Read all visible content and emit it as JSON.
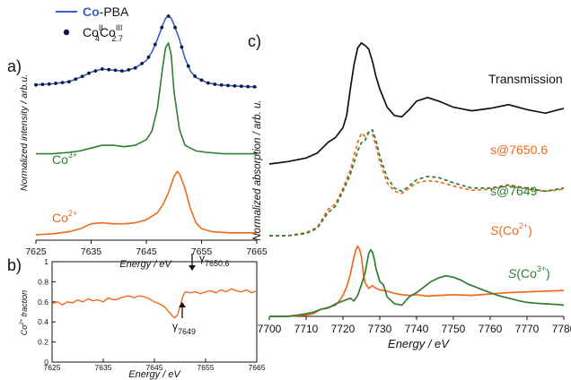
{
  "panels": {
    "a": "a)",
    "b": "b)",
    "c": "c)"
  },
  "colors": {
    "blue": "#3b5fc6",
    "green": "#2e7d32",
    "orange": "#ef6a1c",
    "black": "#111111",
    "dots": "#0d1b3d"
  },
  "chart_data": [
    {
      "id": "a",
      "type": "line",
      "xlabel": "Energy / eV",
      "ylabel": "Normalized intensity / arb.u.",
      "xlim": [
        7625,
        7665
      ],
      "xticks": [
        "7625",
        "7635",
        "7645",
        "7655",
        "7665"
      ],
      "legend": {
        "placement": "top-left",
        "entries": [
          {
            "bold": "Co",
            "text": "-PBA",
            "style": "line",
            "color": "#3b5fc6"
          },
          {
            "text": "Co",
            "sup1": "II",
            "sub1": "4",
            "mid": "Co",
            "sup2": "III",
            "sub2": "2.7",
            "style": "dot",
            "color": "#0d1b3d"
          }
        ]
      },
      "series_labels": [
        {
          "base": "Co",
          "sup": "3+",
          "color": "#2e7d32"
        },
        {
          "base": "Co",
          "sup": "2+",
          "color": "#ef6a1c"
        }
      ],
      "series": [
        {
          "name": "Co-PBA",
          "color": "#3b5fc6",
          "x": [
            7625,
            7628,
            7631,
            7633,
            7635,
            7637,
            7639,
            7641,
            7643,
            7645,
            7646,
            7647,
            7648,
            7648.5,
            7649,
            7649.5,
            7650,
            7651,
            7652,
            7653,
            7654,
            7656,
            7658,
            7661,
            7665
          ],
          "y": [
            0.35,
            0.36,
            0.38,
            0.42,
            0.47,
            0.5,
            0.49,
            0.48,
            0.51,
            0.58,
            0.66,
            0.78,
            0.92,
            0.98,
            1.0,
            0.98,
            0.92,
            0.78,
            0.6,
            0.48,
            0.42,
            0.37,
            0.35,
            0.34,
            0.33
          ]
        },
        {
          "name": "Co3+",
          "color": "#2e7d32",
          "x": [
            7625,
            7628,
            7631,
            7633,
            7635,
            7637,
            7639,
            7641,
            7643,
            7645,
            7646,
            7647,
            7648,
            7648.5,
            7649,
            7649.5,
            7650,
            7651,
            7652,
            7654,
            7656,
            7659,
            7665
          ],
          "y": [
            0.18,
            0.18,
            0.19,
            0.2,
            0.22,
            0.24,
            0.24,
            0.23,
            0.24,
            0.28,
            0.34,
            0.5,
            0.8,
            0.93,
            0.96,
            0.88,
            0.62,
            0.35,
            0.24,
            0.2,
            0.19,
            0.18,
            0.18
          ]
        },
        {
          "name": "Co2+",
          "color": "#ef6a1c",
          "x": [
            7625,
            7628,
            7631,
            7633,
            7635,
            7637,
            7639,
            7641,
            7643,
            7645,
            7647,
            7648,
            7649,
            7650,
            7650.6,
            7651,
            7652,
            7653,
            7654,
            7655,
            7657,
            7660,
            7665
          ],
          "y": [
            0.0,
            0.01,
            0.03,
            0.06,
            0.11,
            0.12,
            0.11,
            0.11,
            0.12,
            0.15,
            0.22,
            0.3,
            0.42,
            0.58,
            0.63,
            0.61,
            0.46,
            0.26,
            0.12,
            0.06,
            0.03,
            0.02,
            0.02
          ]
        }
      ],
      "markers": {
        "name": "CoII4CoIII2.7",
        "x": [
          7625,
          7626.2,
          7627.4,
          7628.6,
          7629.8,
          7631,
          7632.2,
          7633.4,
          7634.6,
          7635.8,
          7637,
          7638.2,
          7639.4,
          7640.6,
          7641.8,
          7643,
          7644.2,
          7645.4,
          7646.6,
          7647.8,
          7649,
          7650.2,
          7651.4,
          7652.6,
          7653.8,
          7655,
          7656.2,
          7657.4,
          7658.6,
          7659.8,
          7661,
          7662.2,
          7663.4,
          7664.6
        ]
      }
    },
    {
      "id": "b",
      "type": "line",
      "xlabel": "Energy / eV",
      "ylabel": "Co2+ fraction",
      "xlim": [
        7625,
        7665
      ],
      "ylim": [
        0,
        1
      ],
      "xticks": [
        "7625",
        "7635",
        "7645",
        "7655",
        "7665"
      ],
      "yticks": [
        "0",
        "0.2",
        "0.4",
        "0.6",
        "0.8",
        "1"
      ],
      "annotations": [
        {
          "greek": "γ",
          "sub": "7650.6",
          "x": 7650.6
        },
        {
          "greek": "γ",
          "sub": "7649",
          "x": 7649
        }
      ],
      "series": [
        {
          "name": "Co2+ fraction",
          "color": "#ef6a1c",
          "x": [
            7625,
            7626,
            7627,
            7628,
            7629,
            7630,
            7631,
            7632,
            7633,
            7634,
            7635,
            7636,
            7637,
            7638,
            7639,
            7640,
            7641,
            7642,
            7643,
            7644,
            7645,
            7646,
            7647,
            7647.5,
            7648,
            7648.5,
            7649,
            7649.5,
            7650,
            7650.6,
            7651,
            7652,
            7653,
            7654,
            7655,
            7656,
            7657,
            7658,
            7659,
            7660,
            7661,
            7662,
            7663,
            7664,
            7665
          ],
          "y": [
            0.58,
            0.6,
            0.57,
            0.6,
            0.59,
            0.62,
            0.6,
            0.63,
            0.61,
            0.62,
            0.6,
            0.64,
            0.62,
            0.63,
            0.65,
            0.66,
            0.64,
            0.66,
            0.65,
            0.63,
            0.6,
            0.58,
            0.55,
            0.52,
            0.49,
            0.46,
            0.44,
            0.47,
            0.55,
            0.66,
            0.7,
            0.69,
            0.7,
            0.68,
            0.7,
            0.71,
            0.69,
            0.72,
            0.7,
            0.73,
            0.71,
            0.7,
            0.72,
            0.69,
            0.71
          ]
        }
      ]
    },
    {
      "id": "c",
      "type": "line",
      "xlabel": "Energy / eV",
      "ylabel": "Normalized absorption / arb. u.",
      "xlim": [
        7700,
        7780
      ],
      "xticks": [
        "7700",
        "7710",
        "7720",
        "7730",
        "7740",
        "7750",
        "7760",
        "7770",
        "7780"
      ],
      "curve_labels": [
        {
          "text": "Transmission",
          "color": "#111111"
        },
        {
          "text": "s@7650.6",
          "color": "#ef6a1c"
        },
        {
          "text": "s@7649",
          "color": "#2e7d32"
        },
        {
          "italic": "S",
          "rest": "(Co",
          "sup": "2+",
          "close": ")",
          "color": "#ef6a1c"
        },
        {
          "italic": "S",
          "rest": "(Co",
          "sup": "3+",
          "close": ")",
          "color": "#2e7d32"
        }
      ],
      "series": [
        {
          "name": "Transmission",
          "color": "#111111",
          "dashed": false,
          "x": [
            7700,
            7705,
            7710,
            7713,
            7716,
            7718,
            7720,
            7721,
            7722,
            7723,
            7724,
            7725,
            7726,
            7727,
            7728,
            7729,
            7730,
            7732,
            7734,
            7736,
            7738,
            7740,
            7743,
            7746,
            7750,
            7755,
            7760,
            7765,
            7770,
            7775,
            7780
          ],
          "y": [
            0.0,
            0.02,
            0.05,
            0.09,
            0.18,
            0.22,
            0.3,
            0.4,
            0.62,
            0.82,
            0.96,
            1.0,
            0.98,
            0.95,
            0.85,
            0.72,
            0.62,
            0.47,
            0.4,
            0.39,
            0.45,
            0.52,
            0.55,
            0.52,
            0.47,
            0.44,
            0.46,
            0.49,
            0.45,
            0.42,
            0.46
          ]
        },
        {
          "name": "s@7650.6",
          "color": "#ef6a1c",
          "dashed": true,
          "x": [
            7700,
            7705,
            7710,
            7713,
            7716,
            7718,
            7720,
            7722,
            7724,
            7725,
            7726,
            7727,
            7728,
            7729,
            7730,
            7732,
            7734,
            7736,
            7738,
            7740,
            7743,
            7746,
            7750,
            7755,
            7760,
            7765,
            7770,
            7775,
            7780
          ],
          "y": [
            0.0,
            0.0,
            0.03,
            0.08,
            0.25,
            0.3,
            0.45,
            0.62,
            0.88,
            0.97,
            0.94,
            0.98,
            0.96,
            0.85,
            0.7,
            0.5,
            0.42,
            0.4,
            0.45,
            0.5,
            0.52,
            0.51,
            0.47,
            0.43,
            0.44,
            0.47,
            0.44,
            0.42,
            0.44
          ]
        },
        {
          "name": "s@7649",
          "color": "#2e7d32",
          "dashed": true,
          "x": [
            7700,
            7705,
            7710,
            7713,
            7716,
            7718,
            7720,
            7722,
            7724,
            7725,
            7726,
            7727,
            7728,
            7729,
            7730,
            7732,
            7734,
            7736,
            7738,
            7740,
            7743,
            7746,
            7750,
            7755,
            7760,
            7765,
            7770,
            7775,
            7780
          ],
          "y": [
            0.0,
            0.0,
            0.02,
            0.07,
            0.22,
            0.28,
            0.42,
            0.58,
            0.8,
            0.88,
            0.9,
            0.98,
            1.0,
            0.9,
            0.75,
            0.55,
            0.45,
            0.42,
            0.47,
            0.53,
            0.56,
            0.55,
            0.5,
            0.45,
            0.45,
            0.48,
            0.45,
            0.42,
            0.45
          ]
        },
        {
          "name": "S(Co2+)",
          "color": "#ef6a1c",
          "dashed": false,
          "x": [
            7700,
            7705,
            7708,
            7710,
            7712,
            7714,
            7716,
            7718,
            7719,
            7720,
            7721,
            7722,
            7723,
            7723.5,
            7724,
            7724.5,
            7725,
            7725.5,
            7726,
            7727,
            7728,
            7729,
            7730,
            7732,
            7734,
            7736,
            7738,
            7740,
            7743,
            7746,
            7750,
            7755,
            7760,
            7765,
            7770,
            7775,
            7780
          ],
          "y": [
            0.0,
            0.0,
            0.01,
            0.02,
            0.04,
            0.1,
            0.13,
            0.16,
            0.22,
            0.3,
            0.42,
            0.6,
            0.85,
            0.95,
            1.0,
            0.96,
            0.86,
            0.62,
            0.48,
            0.4,
            0.44,
            0.4,
            0.38,
            0.36,
            0.33,
            0.31,
            0.3,
            0.31,
            0.29,
            0.3,
            0.31,
            0.3,
            0.32,
            0.34,
            0.35,
            0.36,
            0.37
          ]
        },
        {
          "name": "S(Co3+)",
          "color": "#2e7d32",
          "dashed": false,
          "x": [
            7700,
            7705,
            7708,
            7710,
            7712,
            7714,
            7716,
            7718,
            7720,
            7722,
            7723,
            7724,
            7725,
            7726,
            7727,
            7727.5,
            7728,
            7728.5,
            7729,
            7730,
            7731,
            7732,
            7734,
            7736,
            7738,
            7740,
            7742,
            7744,
            7746,
            7748,
            7750,
            7752,
            7754,
            7756,
            7758,
            7760,
            7762,
            7765,
            7768,
            7770,
            7772,
            7775,
            7778,
            7780
          ],
          "y": [
            0.0,
            0.0,
            0.02,
            0.04,
            0.06,
            0.1,
            0.12,
            0.18,
            0.22,
            0.26,
            0.22,
            0.3,
            0.45,
            0.62,
            0.9,
            0.95,
            0.92,
            0.82,
            0.68,
            0.5,
            0.45,
            0.28,
            0.18,
            0.16,
            0.28,
            0.34,
            0.42,
            0.5,
            0.55,
            0.58,
            0.56,
            0.52,
            0.46,
            0.42,
            0.38,
            0.34,
            0.3,
            0.26,
            0.22,
            0.2,
            0.19,
            0.18,
            0.17,
            0.16
          ]
        }
      ]
    }
  ]
}
